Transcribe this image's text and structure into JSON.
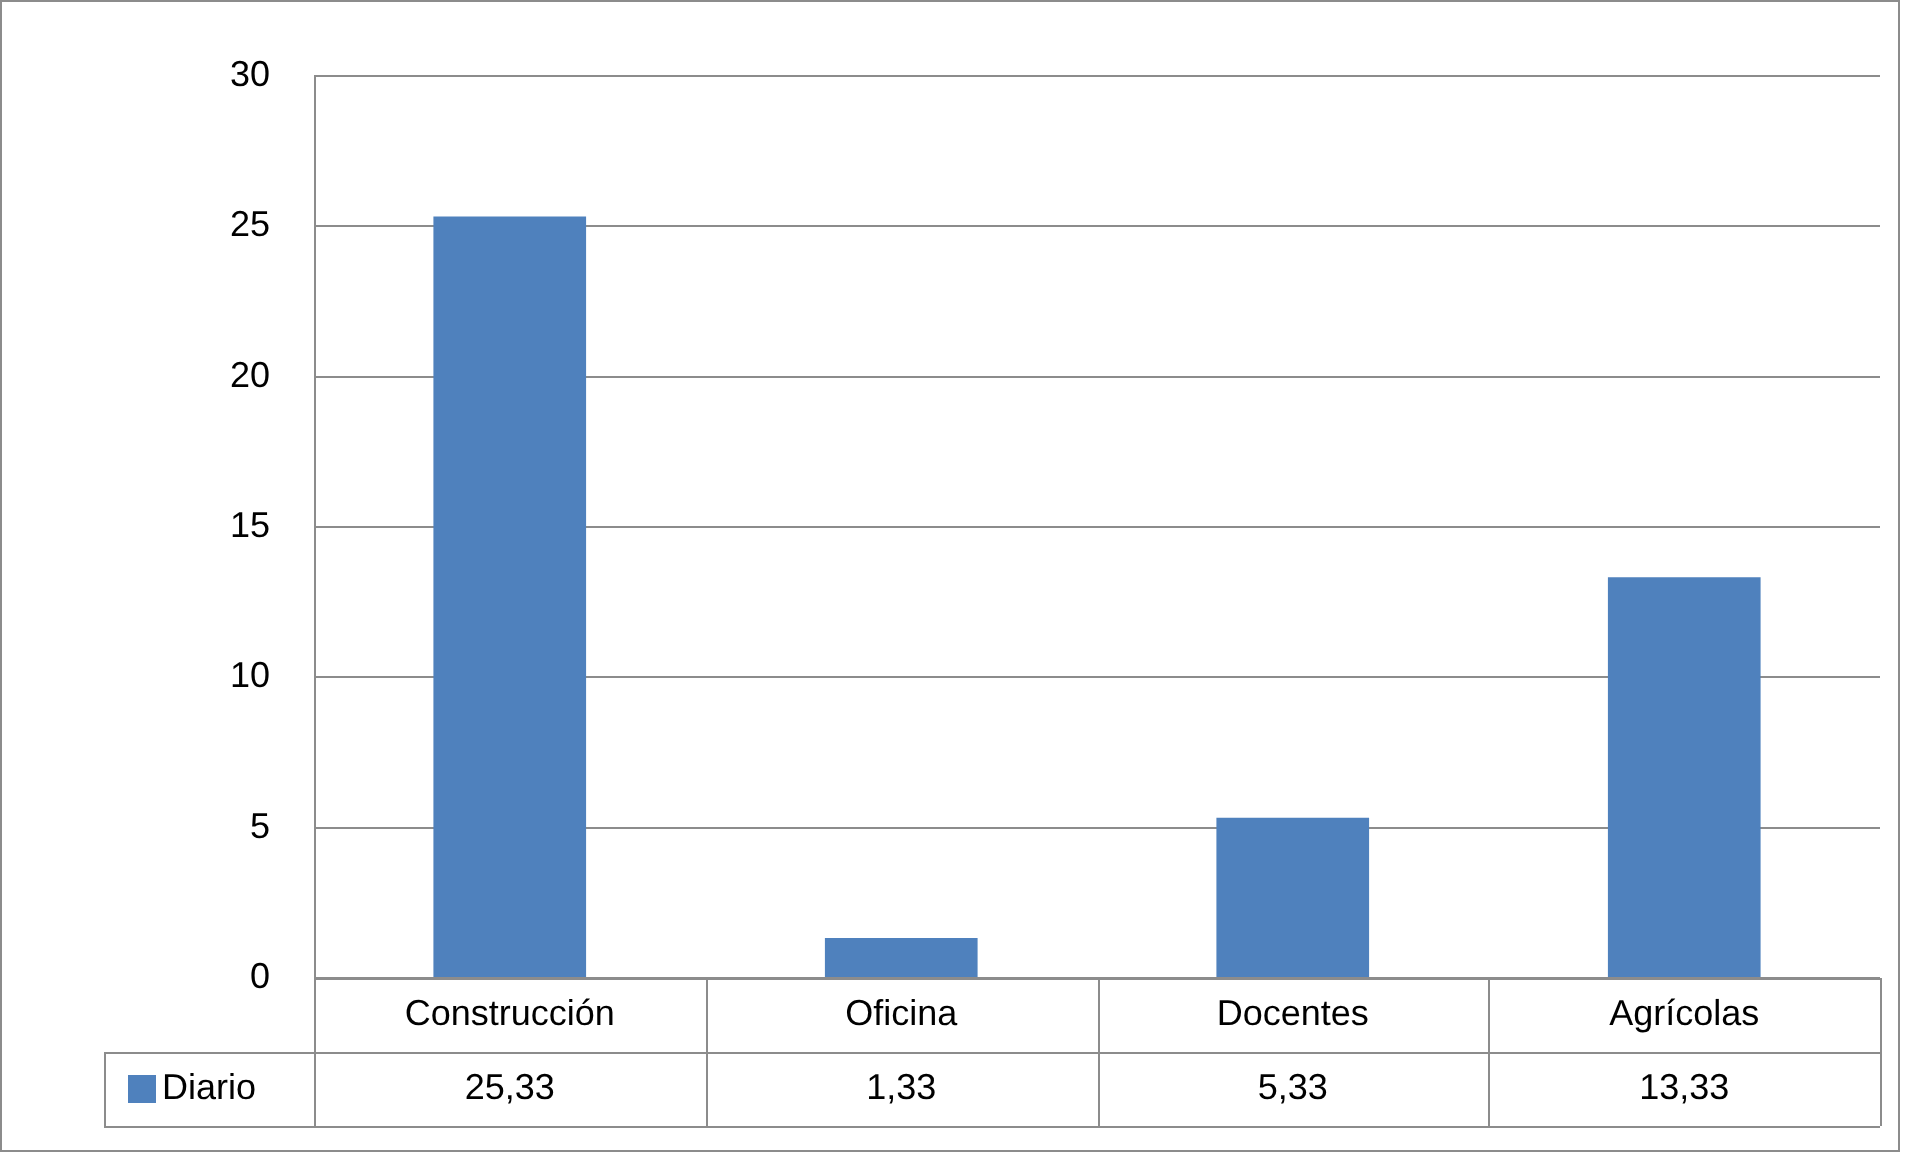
{
  "chart_data": {
    "type": "bar",
    "categories": [
      "Construcción",
      "Oficina",
      "Docentes",
      "Agrícolas"
    ],
    "series": [
      {
        "name": "Diario",
        "color": "#4f81bd",
        "values": [
          25.33,
          1.33,
          5.33,
          13.33
        ],
        "value_labels": [
          "25,33",
          "1,33",
          "5,33",
          "13,33"
        ]
      }
    ],
    "ylim": [
      0,
      30
    ],
    "yticks": [
      0,
      5,
      10,
      15,
      20,
      25,
      30
    ],
    "grid": "y",
    "legend": "bottom"
  }
}
